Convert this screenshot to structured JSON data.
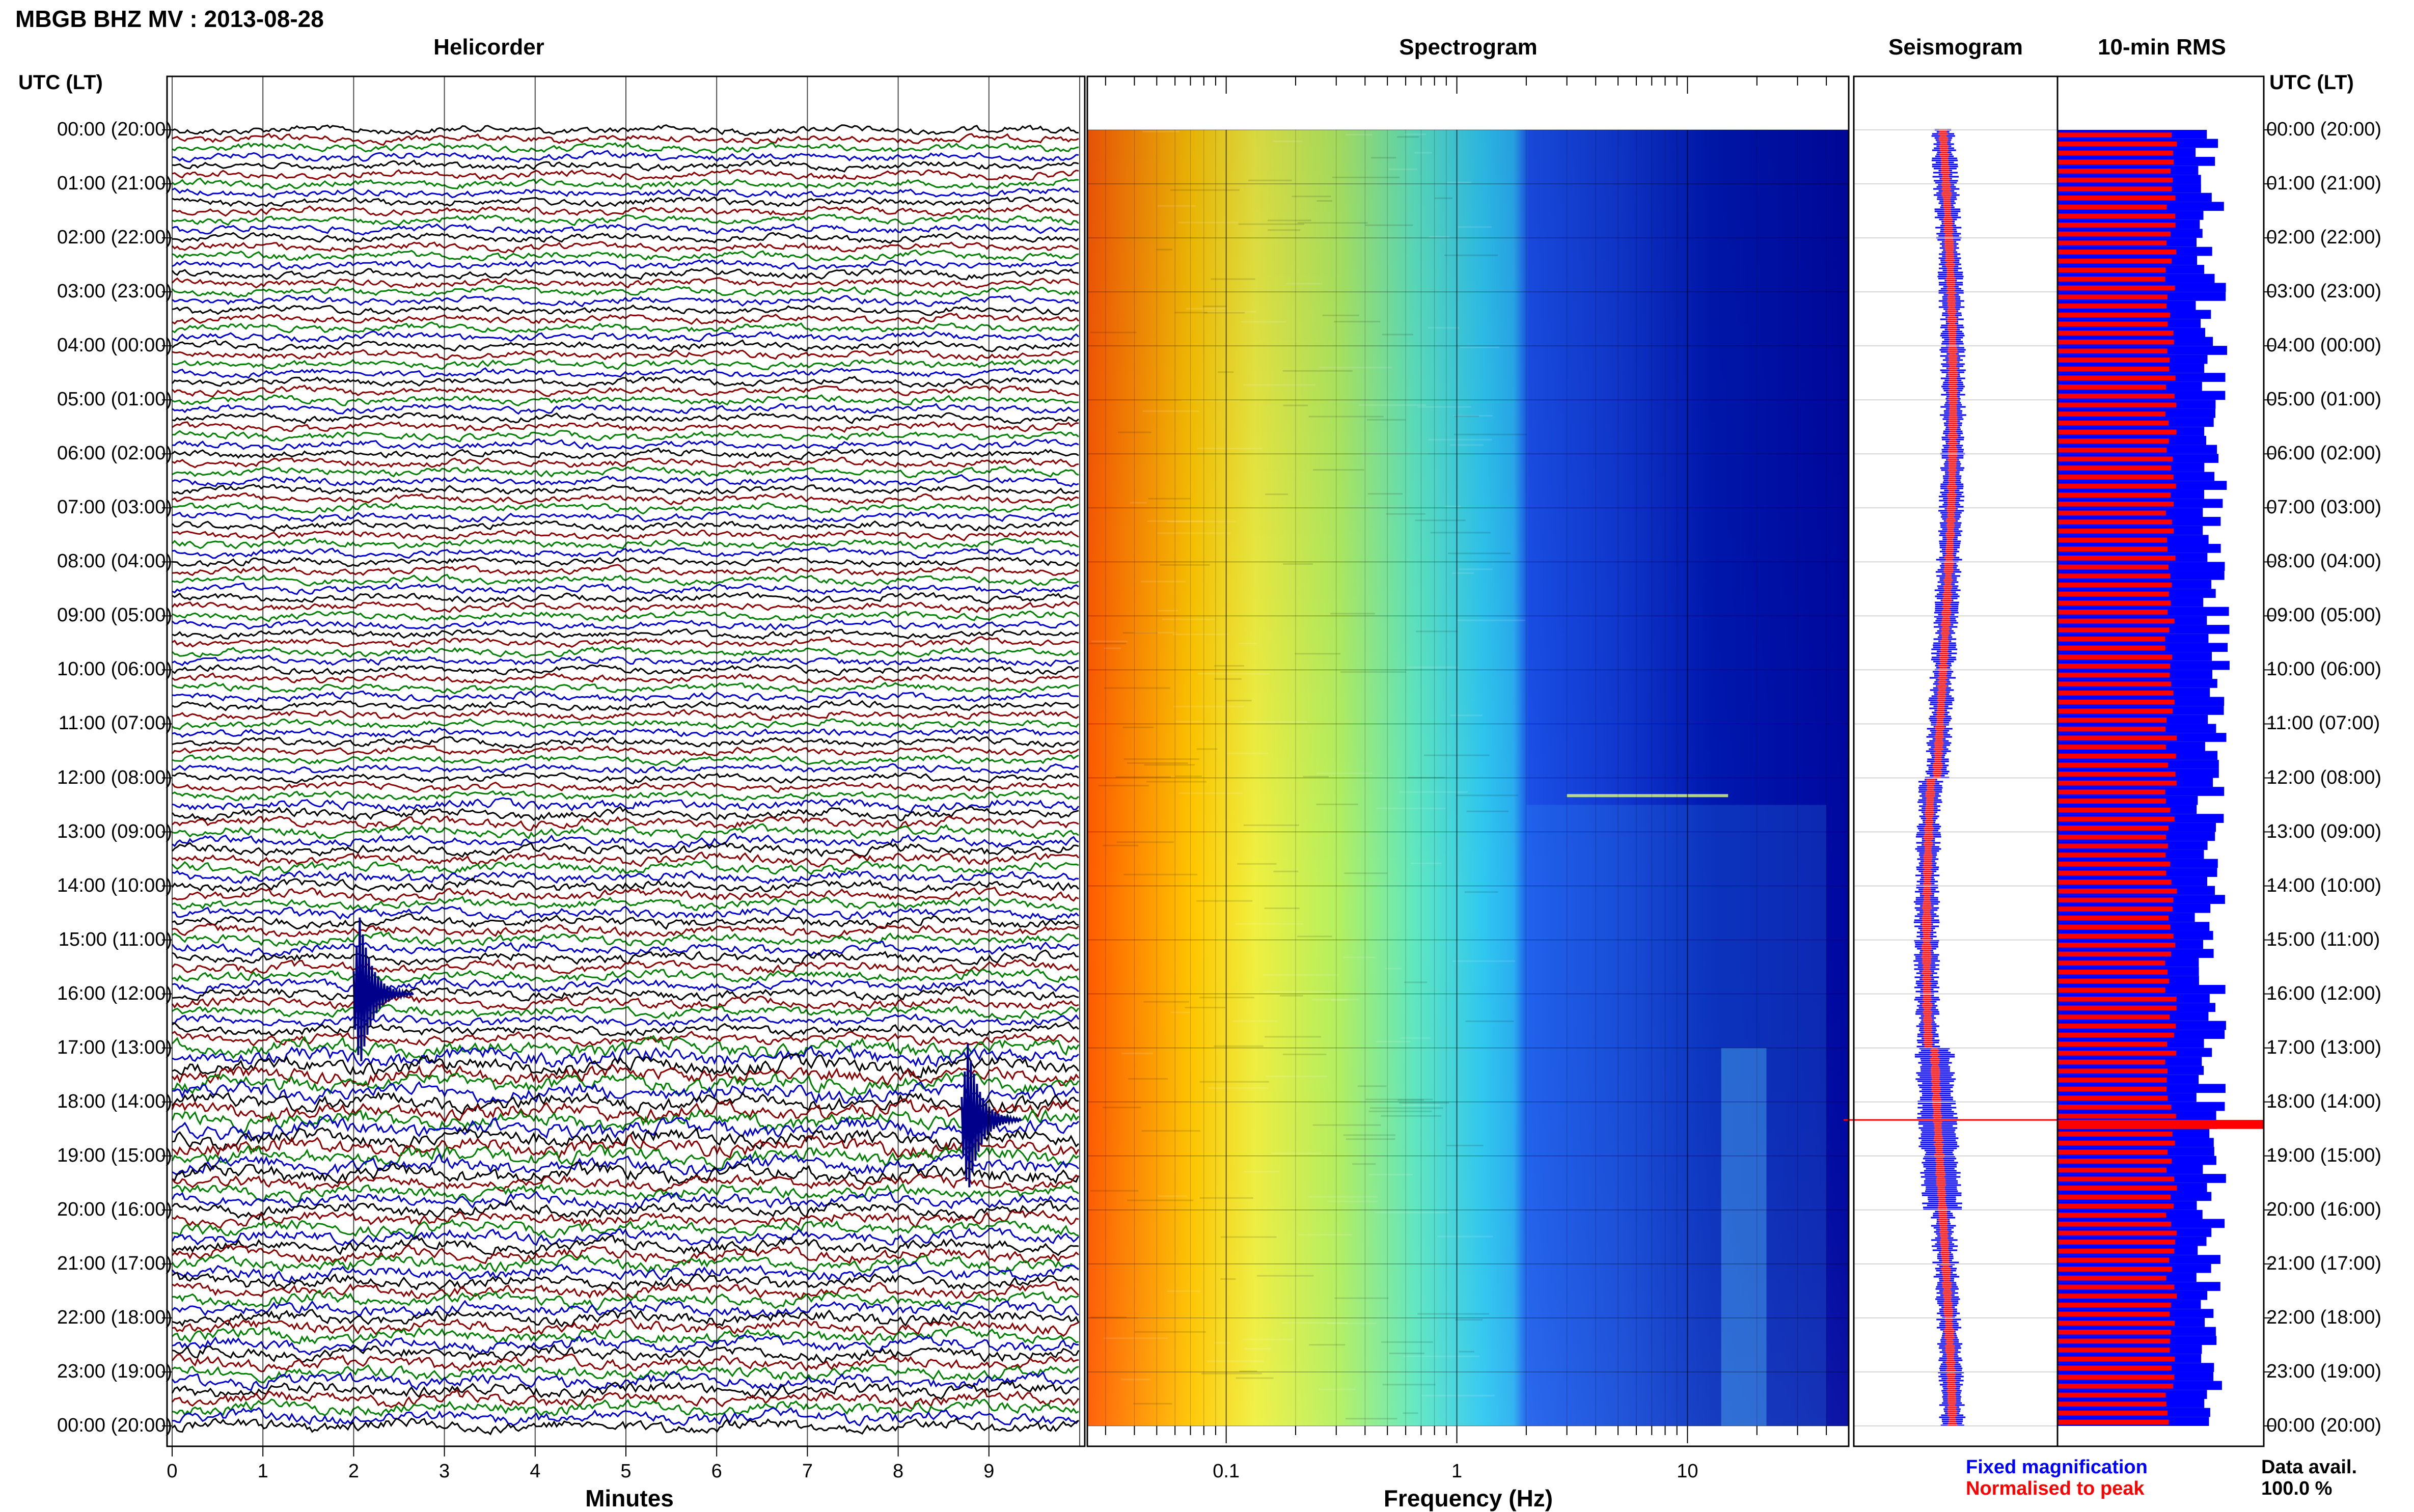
{
  "header": {
    "title": "MBGB BHZ MV : 2013-08-28",
    "utc_lt_left": "UTC (LT)",
    "utc_lt_right": "UTC (LT)"
  },
  "panels": {
    "helicorder": "Helicorder",
    "spectrogram": "Spectrogram",
    "seismogram": "Seismogram",
    "rms": "10-min RMS"
  },
  "legend": {
    "fixed": "Fixed magnification",
    "normalised": "Normalised to peak",
    "fixed_color": "#0000ff",
    "normalised_color": "#ff0000",
    "data_avail_label": "Data avail.",
    "data_avail_value": "100.0 %"
  },
  "time_labels": [
    "00:00 (20:00)",
    "01:00 (21:00)",
    "02:00 (22:00)",
    "03:00 (23:00)",
    "04:00 (00:00)",
    "05:00 (01:00)",
    "06:00 (02:00)",
    "07:00 (03:00)",
    "08:00 (04:00)",
    "09:00 (05:00)",
    "10:00 (06:00)",
    "11:00 (07:00)",
    "12:00 (08:00)",
    "13:00 (09:00)",
    "14:00 (10:00)",
    "15:00 (11:00)",
    "16:00 (12:00)",
    "17:00 (13:00)",
    "18:00 (14:00)",
    "19:00 (15:00)",
    "20:00 (16:00)",
    "21:00 (17:00)",
    "22:00 (18:00)",
    "23:00 (19:00)",
    "00:00 (20:00)"
  ],
  "chart_data": [
    {
      "type": "line",
      "panel": "Helicorder",
      "xlabel": "Minutes",
      "x_ticks": [
        "0",
        "1",
        "2",
        "3",
        "4",
        "5",
        "6",
        "7",
        "8",
        "9"
      ],
      "xlim": [
        0,
        10
      ],
      "lines_per_hour": 6,
      "trace_colors": [
        "#000000",
        "#8b0000",
        "#008000",
        "#0000cd"
      ],
      "events": [
        {
          "time": "16:00",
          "minute": 2.0
        },
        {
          "time": "18:20",
          "minute": 8.7
        }
      ]
    },
    {
      "type": "heatmap",
      "panel": "Spectrogram",
      "xlabel": "Frequency (Hz)",
      "x_scale": "log",
      "x_ticks": [
        "0.1",
        "1",
        "10"
      ],
      "xlim": [
        0.025,
        50
      ],
      "colormap": [
        "#ff6000",
        "#ffd000",
        "#c8ff50",
        "#40ffd0",
        "#2080ff",
        "#0000a0"
      ]
    },
    {
      "type": "line",
      "panel": "Seismogram",
      "series": [
        {
          "name": "Fixed magnification",
          "color": "#0000ff"
        },
        {
          "name": "Normalised to peak",
          "color": "#ff0000"
        }
      ]
    },
    {
      "type": "bar",
      "panel": "10-min RMS",
      "series": [
        {
          "name": "Fixed magnification",
          "color": "#0000ff"
        },
        {
          "name": "Normalised to peak",
          "color": "#ff0000"
        }
      ],
      "peak_time": "18:20",
      "data_available_percent": 100.0
    }
  ]
}
